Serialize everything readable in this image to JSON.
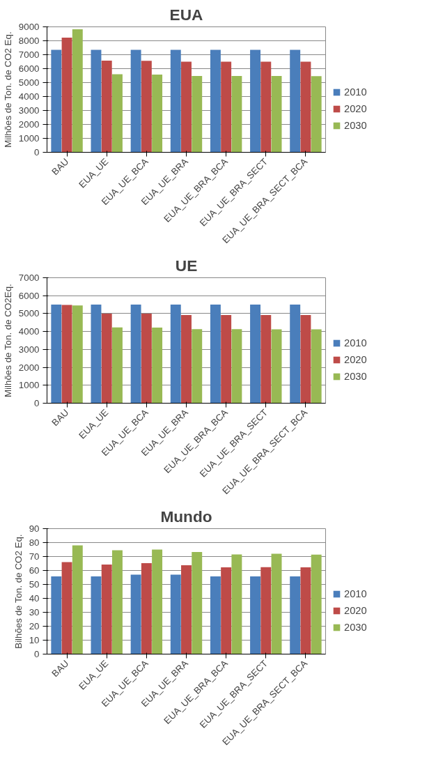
{
  "chart_data": [
    {
      "type": "bar",
      "title": "EUA",
      "ylabel": "Milhões de Ton. de CO2 Eq.",
      "categories": [
        "BAU",
        "EUA_UE",
        "EUA_UE_BCA",
        "EUA_UE_BRA",
        "EUA_UE_BRA_BCA",
        "EUA_UE_BRA_SECT",
        "EUA_UE_BRA_SECT_BCA"
      ],
      "ylim": [
        0,
        9000
      ],
      "yticks": [
        0,
        1000,
        2000,
        3000,
        4000,
        5000,
        6000,
        7000,
        8000,
        9000
      ],
      "grid": "y",
      "legend": "right",
      "series": [
        {
          "name": "2010",
          "color": "#4a7ebb",
          "values": [
            7350,
            7350,
            7350,
            7350,
            7350,
            7350,
            7350
          ]
        },
        {
          "name": "2020",
          "color": "#be4b48",
          "values": [
            8220,
            6580,
            6560,
            6500,
            6500,
            6500,
            6500
          ]
        },
        {
          "name": "2030",
          "color": "#98b954",
          "values": [
            8820,
            5600,
            5580,
            5480,
            5480,
            5470,
            5460
          ]
        }
      ]
    },
    {
      "type": "bar",
      "title": "UE",
      "ylabel": "Milhões de Ton. de CO2Eq.",
      "categories": [
        "BAU",
        "EUA_UE",
        "EUA_UE_BCA",
        "EUA_UE_BRA",
        "EUA_UE_BRA_BCA",
        "EUA_UE_BRA_SECT",
        "EUA_UE_BRA_SECT_BCA"
      ],
      "ylim": [
        0,
        7000
      ],
      "yticks": [
        0,
        1000,
        2000,
        3000,
        4000,
        5000,
        6000,
        7000
      ],
      "grid": "y",
      "legend": "right",
      "series": [
        {
          "name": "2010",
          "color": "#4a7ebb",
          "values": [
            5500,
            5500,
            5500,
            5500,
            5500,
            5500,
            5500
          ]
        },
        {
          "name": "2020",
          "color": "#be4b48",
          "values": [
            5480,
            5000,
            5000,
            4920,
            4920,
            4920,
            4920
          ]
        },
        {
          "name": "2030",
          "color": "#98b954",
          "values": [
            5450,
            4230,
            4220,
            4130,
            4130,
            4120,
            4120
          ]
        }
      ]
    },
    {
      "type": "bar",
      "title": "Mundo",
      "ylabel": "Bilhões de Ton. de CO2 Eq.",
      "categories": [
        "BAU",
        "EUA_UE",
        "EUA_UE_BCA",
        "EUA_UE_BRA",
        "EUA_UE_BRA_BCA",
        "EUA_UE_BRA_SECT",
        "EUA_UE_BRA_SECT_BCA"
      ],
      "ylim": [
        0,
        90
      ],
      "yticks": [
        0,
        10,
        20,
        30,
        40,
        50,
        60,
        70,
        80,
        90
      ],
      "grid": "y",
      "legend": "right",
      "series": [
        {
          "name": "2010",
          "color": "#4a7ebb",
          "values": [
            55.7,
            55.7,
            57,
            57,
            55.7,
            55.7,
            55.7
          ]
        },
        {
          "name": "2020",
          "color": "#be4b48",
          "values": [
            66,
            64.2,
            65.2,
            63.8,
            62.2,
            62.4,
            62.2
          ]
        },
        {
          "name": "2030",
          "color": "#98b954",
          "values": [
            78,
            74.5,
            75,
            73.2,
            71.5,
            72,
            71.4
          ]
        }
      ]
    }
  ]
}
